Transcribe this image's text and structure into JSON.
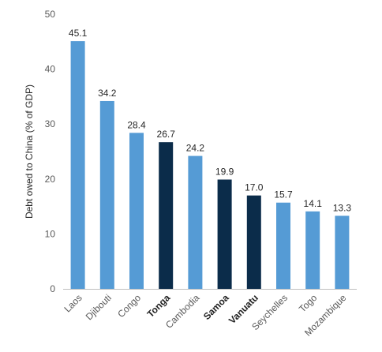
{
  "chart_data": {
    "type": "bar",
    "ylabel": "Debt owed to China (% of GDP)",
    "xlabel": "",
    "ylim": [
      0,
      50
    ],
    "yticks": [
      0,
      10,
      20,
      30,
      40,
      50
    ],
    "grid": false,
    "categories": [
      "Laos",
      "Djibouti",
      "Congo",
      "Tonga",
      "Cambodia",
      "Samoa",
      "Vanuatu",
      "Seychelles",
      "Togo",
      "Mozambique"
    ],
    "values": [
      45.1,
      34.2,
      28.4,
      26.7,
      24.2,
      19.9,
      17.0,
      15.7,
      14.1,
      13.3
    ],
    "value_labels": [
      "45.1",
      "34.2",
      "28.4",
      "26.7",
      "24.2",
      "19.9",
      "17.0",
      "15.7",
      "14.1",
      "13.3"
    ],
    "highlighted": [
      "Tonga",
      "Samoa",
      "Vanuatu"
    ],
    "colors": {
      "default": "#559bd5",
      "highlight": "#0b2c4a",
      "axis": "#bfbfbf"
    }
  }
}
